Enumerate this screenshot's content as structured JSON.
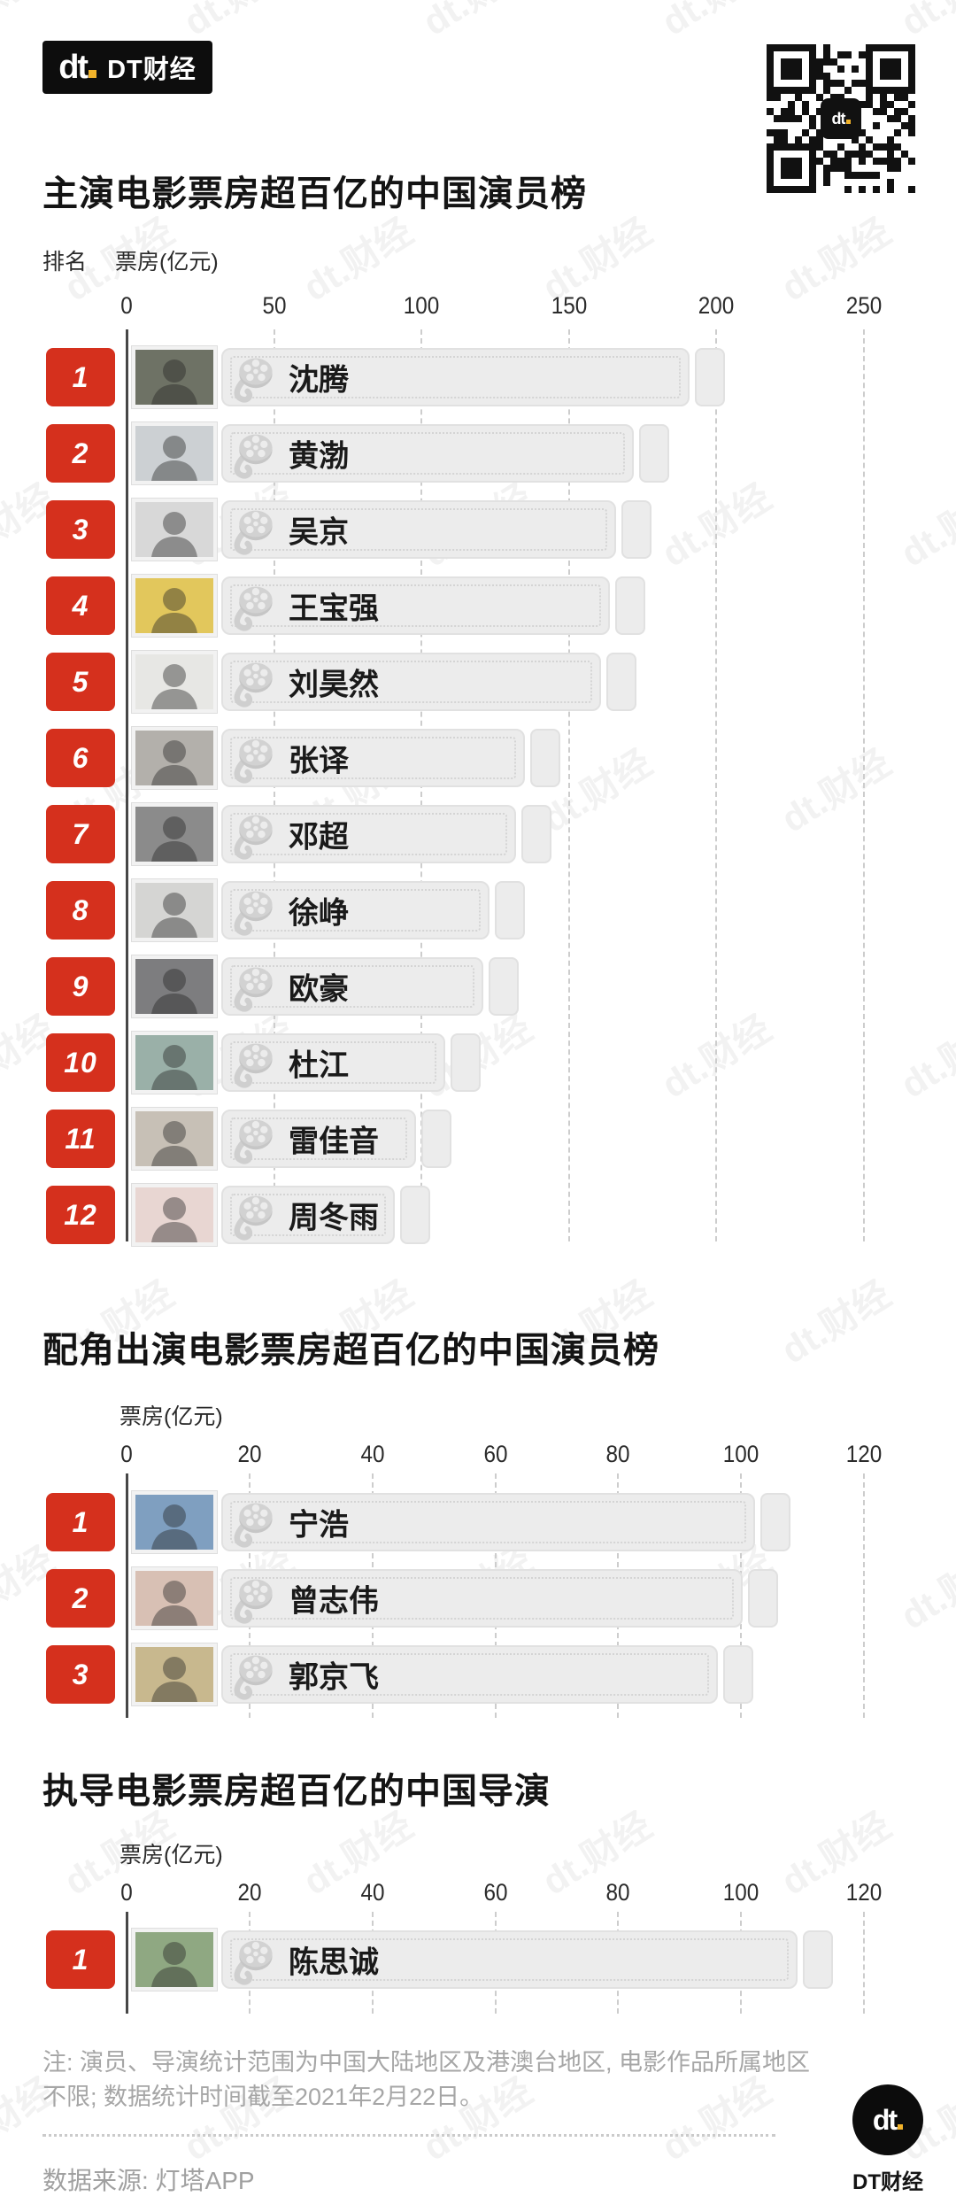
{
  "header": {
    "logo_mark": "dt",
    "logo_name": "DT财经",
    "qr_center_mark": "dt"
  },
  "sections": {
    "chart1_title": "主演电影票房超百亿的中国演员榜",
    "chart1_rank_label": "排名",
    "chart1_axis_label": "票房(亿元)",
    "chart2_title": "配角出演电影票房超百亿的中国演员榜",
    "chart2_axis_label": "票房(亿元)",
    "chart3_title": "执导电影票房超百亿的中国导演",
    "chart3_axis_label": "票房(亿元)"
  },
  "footer": {
    "note": "注: 演员、导演统计范围为中国大陆地区及港澳台地区, 电影作品所属地区不限; 数据统计时间截至2021年2月22日。",
    "source": "数据来源: 灯塔APP",
    "logo_mark": "dt",
    "logo_name": "DT财经"
  },
  "watermark_text": "dt.财经",
  "colors": {
    "accent_red": "#d5301d",
    "logo_yellow": "#f2b32a",
    "bar_fill": "#ececec",
    "axis_line": "#474747"
  },
  "chart_data": [
    {
      "type": "bar",
      "orientation": "horizontal",
      "title": "主演电影票房超百亿的中国演员榜",
      "xlabel": "票房(亿元)",
      "xlim": [
        0,
        250
      ],
      "axis_ticks": [
        0,
        50,
        100,
        150,
        200,
        250
      ],
      "grid": true,
      "ranks": [
        1,
        2,
        3,
        4,
        5,
        6,
        7,
        8,
        9,
        10,
        11,
        12
      ],
      "categories": [
        "沈腾",
        "黄渤",
        "吴京",
        "王宝强",
        "刘昊然",
        "张译",
        "邓超",
        "徐峥",
        "欧豪",
        "杜江",
        "雷佳音",
        "周冬雨"
      ],
      "values": [
        203,
        184,
        178,
        176,
        173,
        147,
        144,
        135,
        133,
        120,
        110,
        103
      ],
      "avatar_tints": [
        "#6e7265",
        "#ccd0d3",
        "#d8d8d8",
        "#e2c75c",
        "#e7e7e4",
        "#b3b0ab",
        "#8b8b8b",
        "#d5d5d3",
        "#7d7d7f",
        "#9ab0a8",
        "#c7c0b6",
        "#e8d6d2"
      ]
    },
    {
      "type": "bar",
      "orientation": "horizontal",
      "title": "配角出演电影票房超百亿的中国演员榜",
      "xlabel": "票房(亿元)",
      "xlim": [
        0,
        120
      ],
      "axis_ticks": [
        0,
        20,
        40,
        60,
        80,
        100,
        120
      ],
      "grid": true,
      "ranks": [
        1,
        2,
        3
      ],
      "categories": [
        "宁浩",
        "曾志伟",
        "郭京飞"
      ],
      "values": [
        108,
        106,
        102
      ],
      "avatar_tints": [
        "#7f9fc0",
        "#d8c0b4",
        "#c8b88e"
      ]
    },
    {
      "type": "bar",
      "orientation": "horizontal",
      "title": "执导电影票房超百亿的中国导演",
      "xlabel": "票房(亿元)",
      "xlim": [
        0,
        120
      ],
      "axis_ticks": [
        0,
        20,
        40,
        60,
        80,
        100,
        120
      ],
      "grid": true,
      "ranks": [
        1
      ],
      "categories": [
        "陈思诚"
      ],
      "values": [
        115
      ],
      "avatar_tints": [
        "#8fa882"
      ]
    }
  ]
}
